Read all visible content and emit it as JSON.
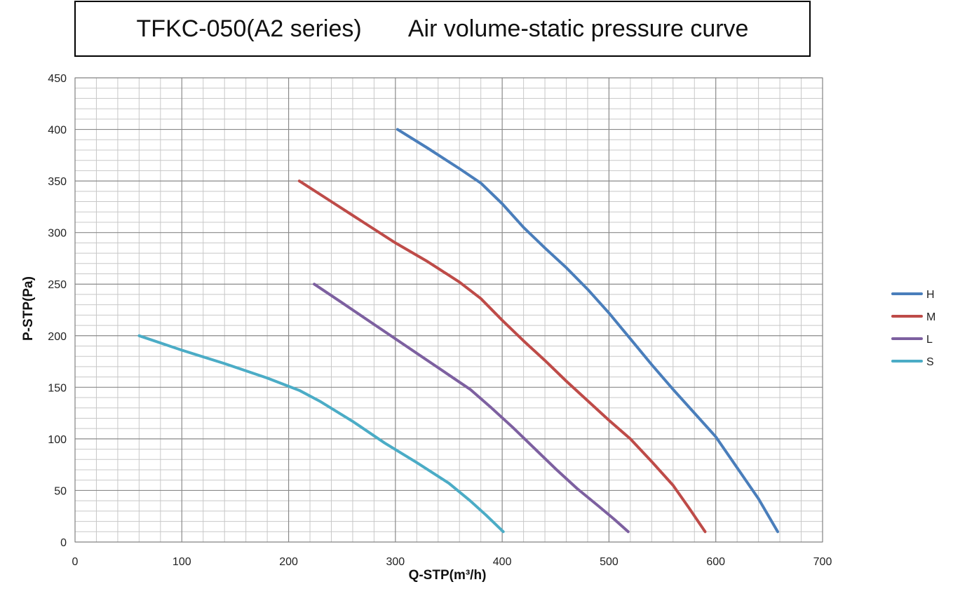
{
  "chart_data": {
    "type": "line",
    "title_left": "TFKC-050(A2 series)",
    "title_right": "Air volume-static pressure curve",
    "xlabel": "Q-STP(m³/h)",
    "ylabel": "P-STP(Pa)",
    "xlim": [
      0,
      700
    ],
    "ylim": [
      0,
      450
    ],
    "x_ticks": [
      0,
      100,
      200,
      300,
      400,
      500,
      600,
      700
    ],
    "y_ticks": [
      0,
      50,
      100,
      150,
      200,
      250,
      300,
      350,
      400,
      450
    ],
    "x_minor_step": 20,
    "y_minor_step": 10,
    "grid": true,
    "legend_position": "right",
    "series": [
      {
        "name": "H",
        "color": "#4a7ebb",
        "points": [
          [
            302,
            400
          ],
          [
            330,
            382
          ],
          [
            360,
            362
          ],
          [
            380,
            348
          ],
          [
            400,
            328
          ],
          [
            420,
            305
          ],
          [
            440,
            285
          ],
          [
            460,
            266
          ],
          [
            480,
            245
          ],
          [
            500,
            222
          ],
          [
            520,
            197
          ],
          [
            540,
            172
          ],
          [
            560,
            148
          ],
          [
            580,
            125
          ],
          [
            600,
            102
          ],
          [
            620,
            72
          ],
          [
            640,
            42
          ],
          [
            658,
            10
          ]
        ]
      },
      {
        "name": "M",
        "color": "#be4b48",
        "points": [
          [
            210,
            350
          ],
          [
            240,
            330
          ],
          [
            270,
            310
          ],
          [
            300,
            290
          ],
          [
            330,
            272
          ],
          [
            360,
            252
          ],
          [
            380,
            236
          ],
          [
            400,
            215
          ],
          [
            420,
            195
          ],
          [
            440,
            176
          ],
          [
            460,
            156
          ],
          [
            480,
            137
          ],
          [
            500,
            118
          ],
          [
            520,
            100
          ],
          [
            540,
            78
          ],
          [
            560,
            55
          ],
          [
            575,
            33
          ],
          [
            590,
            10
          ]
        ]
      },
      {
        "name": "L",
        "color": "#7d60a0",
        "points": [
          [
            224,
            250
          ],
          [
            250,
            232
          ],
          [
            280,
            211
          ],
          [
            310,
            190
          ],
          [
            340,
            169
          ],
          [
            370,
            148
          ],
          [
            390,
            130
          ],
          [
            410,
            111
          ],
          [
            430,
            91
          ],
          [
            450,
            71
          ],
          [
            470,
            52
          ],
          [
            490,
            35
          ],
          [
            505,
            22
          ],
          [
            518,
            10
          ]
        ]
      },
      {
        "name": "S",
        "color": "#4bacc6",
        "points": [
          [
            60,
            200
          ],
          [
            100,
            186
          ],
          [
            140,
            173
          ],
          [
            180,
            159
          ],
          [
            210,
            147
          ],
          [
            230,
            136
          ],
          [
            260,
            117
          ],
          [
            290,
            96
          ],
          [
            320,
            77
          ],
          [
            350,
            57
          ],
          [
            370,
            40
          ],
          [
            385,
            26
          ],
          [
            401,
            10
          ]
        ]
      }
    ]
  }
}
